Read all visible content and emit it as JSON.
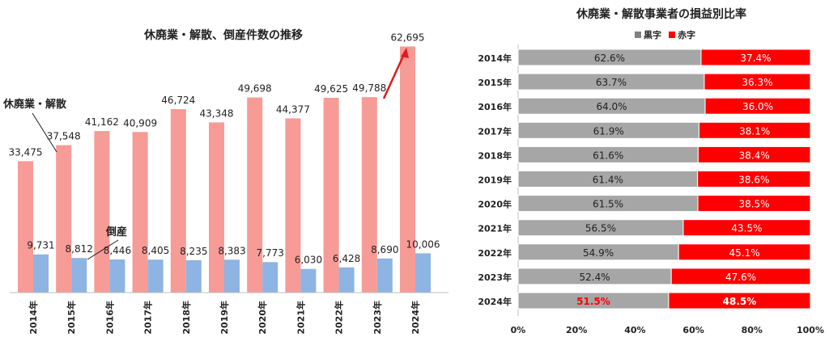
{
  "chart_data": [
    {
      "type": "bar",
      "title": "休廃業・解散、倒産件数の推移",
      "categories": [
        "2014年",
        "2015年",
        "2016年",
        "2017年",
        "2018年",
        "2019年",
        "2020年",
        "2021年",
        "2022年",
        "2023年",
        "2024年"
      ],
      "series": [
        {
          "name": "休廃業・解散",
          "values": [
            33475,
            37548,
            41162,
            40909,
            46724,
            43348,
            49698,
            44377,
            49625,
            49788,
            62695
          ],
          "labels": [
            "33,475",
            "37,548",
            "41,162",
            "40,909",
            "46,724",
            "43,348",
            "49,698",
            "44,377",
            "49,625",
            "49,788",
            "62,695"
          ],
          "color": "#f79b96"
        },
        {
          "name": "倒産",
          "values": [
            9731,
            8812,
            8446,
            8405,
            8235,
            8383,
            7773,
            6030,
            6428,
            8690,
            10006
          ],
          "labels": [
            "9,731",
            "8,812",
            "8,446",
            "8,405",
            "8,235",
            "8,383",
            "7,773",
            "6,030",
            "6,428",
            "8,690",
            "10,006"
          ],
          "color": "#8db4e3"
        }
      ],
      "annotations": {
        "closures_label": "休廃業・解散",
        "bankrupt_label": "倒産",
        "arrow_color": "#e01b1b"
      },
      "ylim": [
        0,
        70000
      ],
      "grid": false
    },
    {
      "type": "bar",
      "orientation": "horizontal",
      "stacked": true,
      "title": "休廃業・解散事業者の損益別比率",
      "categories": [
        "2014年",
        "2015年",
        "2016年",
        "2017年",
        "2018年",
        "2019年",
        "2020年",
        "2021年",
        "2022年",
        "2023年",
        "2024年"
      ],
      "series": [
        {
          "name": "黒字",
          "values": [
            62.6,
            63.7,
            64.0,
            61.9,
            61.6,
            61.4,
            61.5,
            56.5,
            54.9,
            52.4,
            51.5
          ],
          "labels": [
            "62.6%",
            "63.7%",
            "64.0%",
            "61.9%",
            "61.6%",
            "61.4%",
            "61.5%",
            "56.5%",
            "54.9%",
            "52.4%",
            "51.5%"
          ],
          "color": "#a6a6a6"
        },
        {
          "name": "赤字",
          "values": [
            37.4,
            36.3,
            36.0,
            38.1,
            38.4,
            38.6,
            38.5,
            43.5,
            45.1,
            47.6,
            48.5
          ],
          "labels": [
            "37.4%",
            "36.3%",
            "36.0%",
            "38.1%",
            "38.4%",
            "38.6%",
            "38.5%",
            "43.5%",
            "45.1%",
            "47.6%",
            "48.5%"
          ],
          "color": "#ff0000"
        }
      ],
      "xlim": [
        0,
        100
      ],
      "xticks": [
        "0%",
        "20%",
        "40%",
        "60%",
        "80%",
        "100%"
      ],
      "legend": "top",
      "grid": false
    }
  ]
}
